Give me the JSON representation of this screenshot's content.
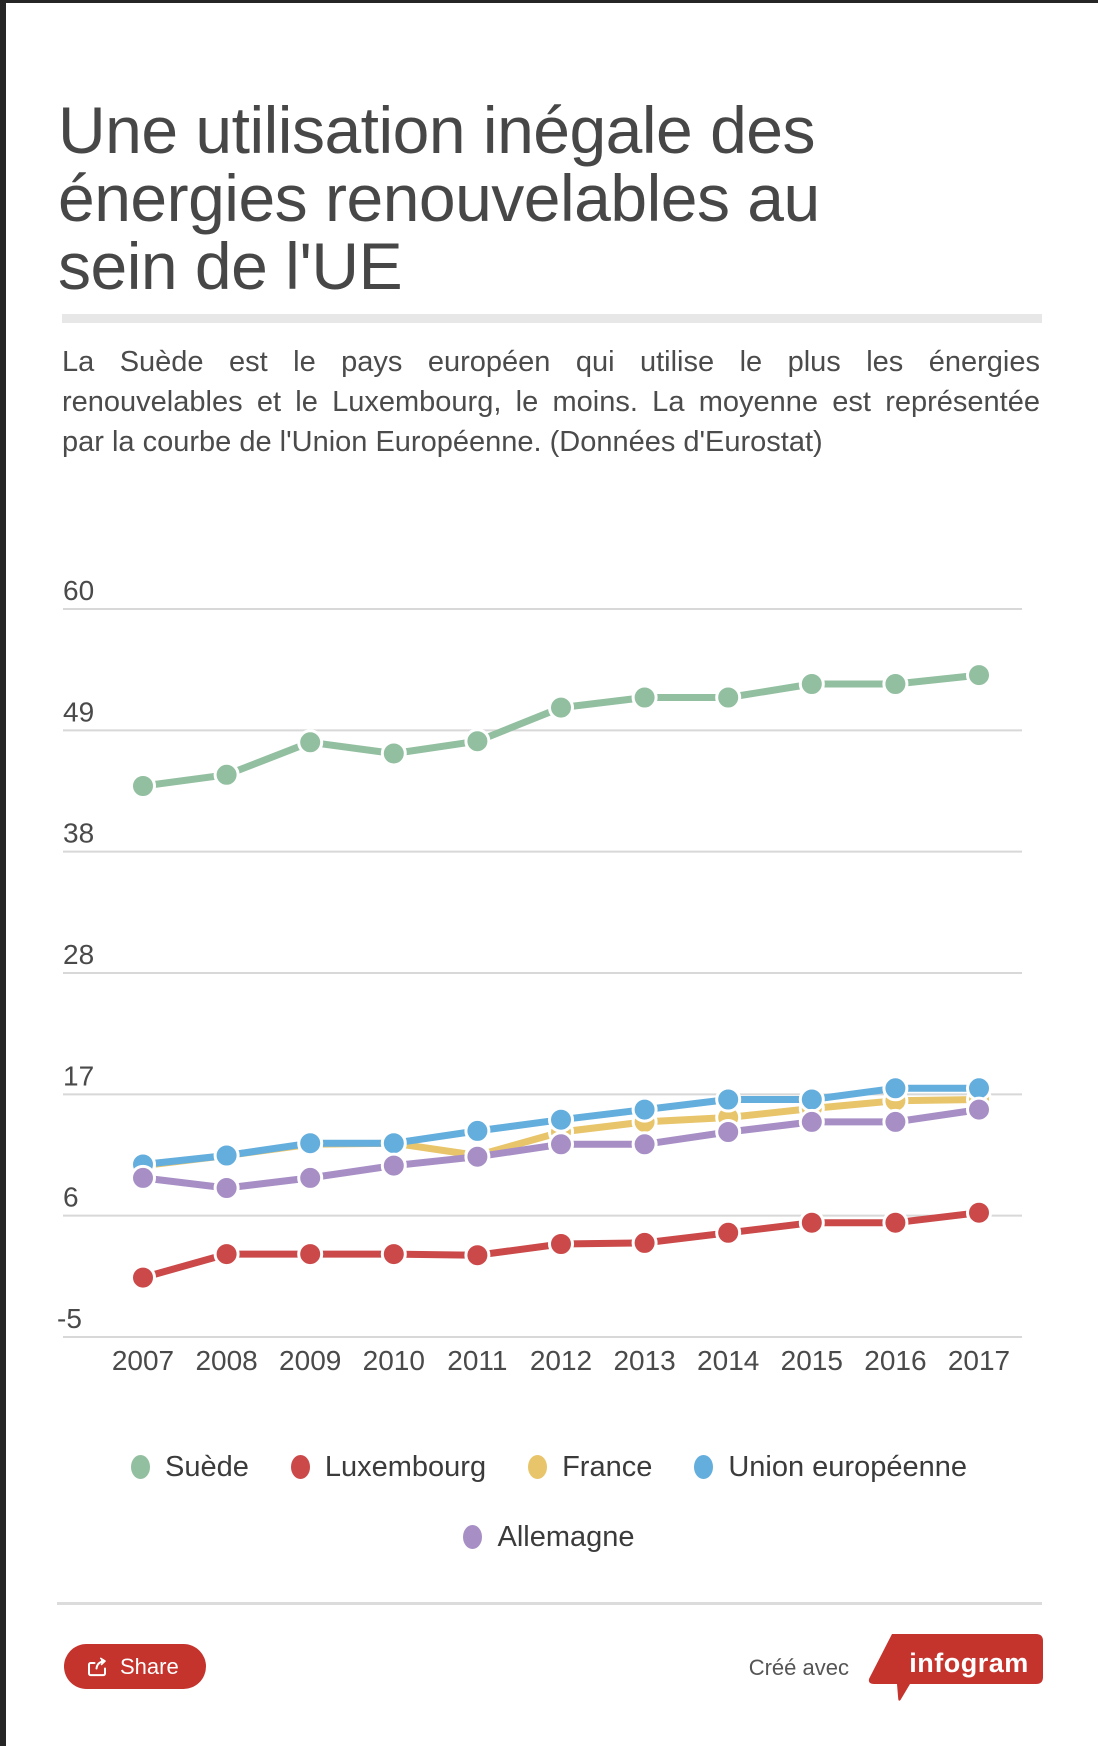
{
  "page": {
    "title": "Une utilisation inégale des énergies renouvelables au sein de l'UE",
    "title_lines": [
      "Une utilisation inégale des",
      "énergies renouvelables au",
      "sein de l'UE"
    ],
    "description": "La Suède est le pays européen qui utilise le plus les énergies renouvelables et le Luxembourg, le moins. La moyenne est représentée par la courbe de l'Union Européenne.  (Données d'Eurostat)",
    "description_lines": [
      "La Suède est le pays européen qui utilise le plus les énergies",
      "renouvelables et le Luxembourg, le moins. La moyenne est représentée",
      "par la courbe de l'Union Européenne.  (Données d'Eurostat)"
    ]
  },
  "chart_data": {
    "type": "line",
    "x": [
      2007,
      2008,
      2009,
      2010,
      2011,
      2012,
      2013,
      2014,
      2015,
      2016,
      2017
    ],
    "series": [
      {
        "name": "Suède",
        "color": "#92bfa0",
        "values": [
          44.2,
          45.2,
          48.1,
          47.1,
          48.2,
          51.2,
          52.1,
          52.1,
          53.3,
          53.3,
          54.1
        ]
      },
      {
        "name": "Luxembourg",
        "color": "#cb4949",
        "values": [
          0.3,
          2.4,
          2.4,
          2.4,
          2.3,
          3.3,
          3.4,
          4.3,
          5.2,
          5.2,
          6.1
        ]
      },
      {
        "name": "France",
        "color": "#e8c56a",
        "values": [
          10.3,
          11.2,
          12.2,
          12.3,
          11.2,
          13.3,
          14.2,
          14.6,
          15.4,
          16.1,
          16.2
        ]
      },
      {
        "name": "Union européenne",
        "color": "#64aedd",
        "values": [
          10.4,
          11.2,
          12.3,
          12.3,
          13.4,
          14.4,
          15.3,
          16.2,
          16.2,
          17.2,
          17.2
        ]
      },
      {
        "name": "Allemagne",
        "color": "#a78fc6",
        "values": [
          9.2,
          8.3,
          9.2,
          10.3,
          11.1,
          12.2,
          12.2,
          13.3,
          14.2,
          14.2,
          15.3
        ]
      }
    ],
    "y_axis": {
      "min": -5,
      "max": 60,
      "tick_labels": [
        "60",
        "49",
        "38",
        "28",
        "17",
        "6",
        "-5"
      ]
    },
    "x_axis": {
      "tick_labels": [
        "2007",
        "2008",
        "2009",
        "2010",
        "2011",
        "2012",
        "2013",
        "2014",
        "2015",
        "2016",
        "2017"
      ]
    },
    "grid": true,
    "legend_position": "bottom",
    "legend_rows": [
      [
        "Suède",
        "Luxembourg",
        "France",
        "Union européenne"
      ],
      [
        "Allemagne"
      ]
    ],
    "colors": {
      "grid": "#d8d8d8",
      "axis_text": "#4a4a4a",
      "accent_red": "#c5332d"
    }
  },
  "footer": {
    "share_label": "Share",
    "created_with_label": "Créé avec",
    "brand_name": "infogram"
  }
}
